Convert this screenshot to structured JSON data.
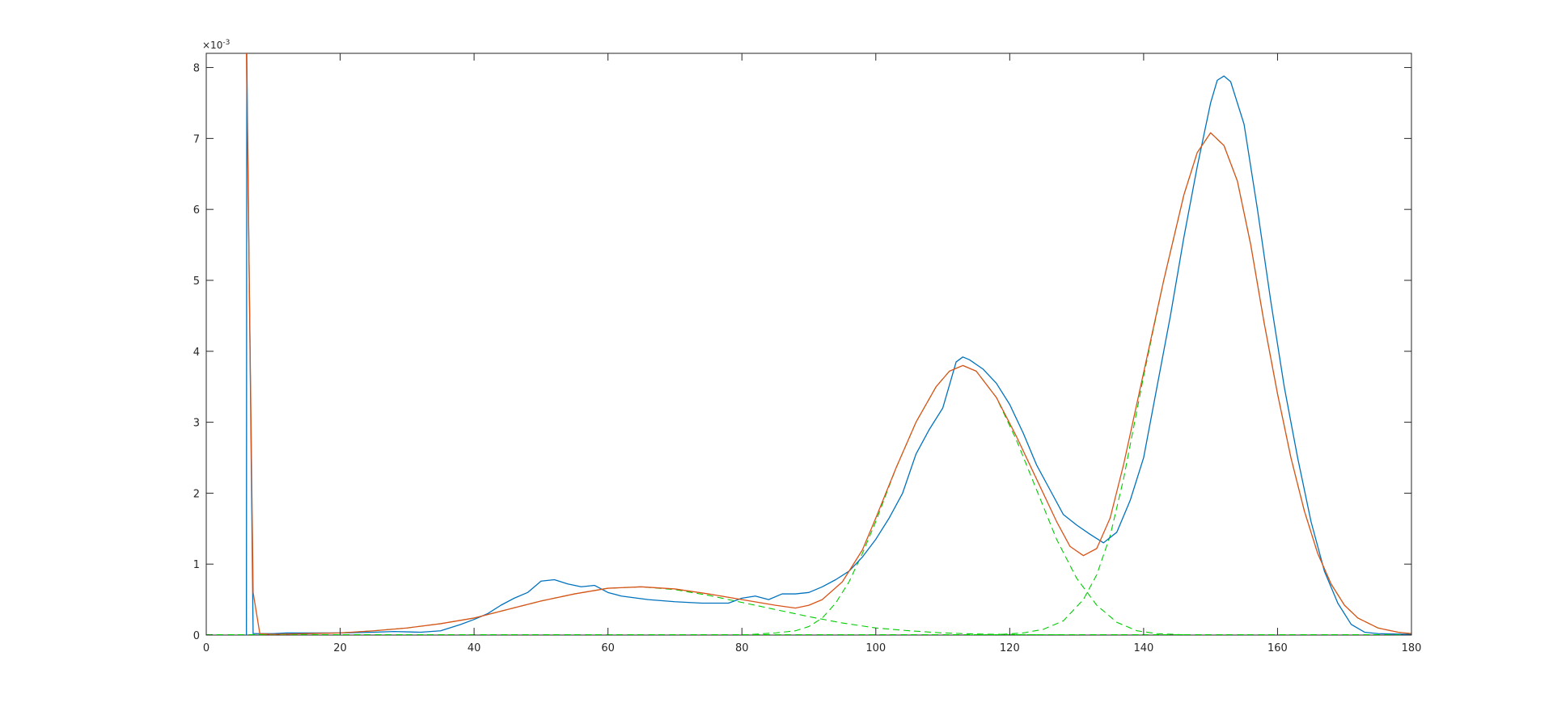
{
  "chart_data": {
    "type": "line",
    "title": "",
    "xlabel": "",
    "ylabel": "",
    "xlim": [
      0,
      180
    ],
    "ylim": [
      0,
      8.2
    ],
    "y_exponent_label": "×10",
    "y_exponent_power": "-3",
    "x_ticks": [
      0,
      20,
      40,
      60,
      80,
      100,
      120,
      140,
      160,
      180
    ],
    "y_ticks": [
      0,
      1,
      2,
      3,
      4,
      5,
      6,
      7,
      8
    ],
    "grid": false,
    "legend": "none",
    "series": [
      {
        "color": "#0072BD",
        "style": "solid",
        "points": [
          [
            6.0,
            0.0
          ],
          [
            6.05,
            8.2
          ],
          [
            7.0,
            0.02
          ],
          [
            10,
            0.02
          ],
          [
            12,
            0.03
          ],
          [
            15,
            0.03
          ],
          [
            20,
            0.03
          ],
          [
            25,
            0.04
          ],
          [
            28,
            0.05
          ],
          [
            32,
            0.04
          ],
          [
            35,
            0.06
          ],
          [
            38,
            0.15
          ],
          [
            40,
            0.22
          ],
          [
            42,
            0.3
          ],
          [
            44,
            0.42
          ],
          [
            46,
            0.52
          ],
          [
            48,
            0.6
          ],
          [
            50,
            0.76
          ],
          [
            52,
            0.78
          ],
          [
            54,
            0.72
          ],
          [
            56,
            0.68
          ],
          [
            58,
            0.7
          ],
          [
            60,
            0.6
          ],
          [
            62,
            0.55
          ],
          [
            66,
            0.5
          ],
          [
            70,
            0.47
          ],
          [
            74,
            0.45
          ],
          [
            78,
            0.45
          ],
          [
            80,
            0.52
          ],
          [
            82,
            0.55
          ],
          [
            84,
            0.5
          ],
          [
            86,
            0.58
          ],
          [
            88,
            0.58
          ],
          [
            90,
            0.6
          ],
          [
            92,
            0.68
          ],
          [
            94,
            0.78
          ],
          [
            96,
            0.9
          ],
          [
            98,
            1.1
          ],
          [
            100,
            1.35
          ],
          [
            102,
            1.65
          ],
          [
            104,
            2.0
          ],
          [
            106,
            2.55
          ],
          [
            108,
            2.9
          ],
          [
            110,
            3.2
          ],
          [
            112,
            3.85
          ],
          [
            113,
            3.92
          ],
          [
            114,
            3.88
          ],
          [
            116,
            3.75
          ],
          [
            118,
            3.55
          ],
          [
            120,
            3.25
          ],
          [
            122,
            2.85
          ],
          [
            124,
            2.4
          ],
          [
            126,
            2.05
          ],
          [
            128,
            1.7
          ],
          [
            130,
            1.55
          ],
          [
            132,
            1.42
          ],
          [
            134,
            1.3
          ],
          [
            136,
            1.45
          ],
          [
            138,
            1.9
          ],
          [
            140,
            2.5
          ],
          [
            142,
            3.5
          ],
          [
            144,
            4.5
          ],
          [
            146,
            5.6
          ],
          [
            148,
            6.6
          ],
          [
            150,
            7.5
          ],
          [
            151,
            7.82
          ],
          [
            152,
            7.88
          ],
          [
            153,
            7.8
          ],
          [
            155,
            7.2
          ],
          [
            157,
            6.0
          ],
          [
            159,
            4.7
          ],
          [
            161,
            3.5
          ],
          [
            163,
            2.5
          ],
          [
            165,
            1.6
          ],
          [
            167,
            0.9
          ],
          [
            169,
            0.45
          ],
          [
            171,
            0.15
          ],
          [
            173,
            0.04
          ],
          [
            175,
            0.02
          ],
          [
            180,
            0.01
          ]
        ]
      },
      {
        "color": "#D95319",
        "style": "solid",
        "points": [
          [
            6.0,
            8.2
          ],
          [
            7.0,
            0.6
          ],
          [
            8.0,
            0.02
          ],
          [
            10,
            0.01
          ],
          [
            15,
            0.02
          ],
          [
            20,
            0.03
          ],
          [
            25,
            0.06
          ],
          [
            30,
            0.1
          ],
          [
            35,
            0.16
          ],
          [
            40,
            0.24
          ],
          [
            45,
            0.36
          ],
          [
            50,
            0.48
          ],
          [
            55,
            0.58
          ],
          [
            60,
            0.66
          ],
          [
            65,
            0.68
          ],
          [
            70,
            0.65
          ],
          [
            75,
            0.58
          ],
          [
            80,
            0.5
          ],
          [
            85,
            0.42
          ],
          [
            88,
            0.38
          ],
          [
            90,
            0.42
          ],
          [
            92,
            0.5
          ],
          [
            95,
            0.75
          ],
          [
            98,
            1.2
          ],
          [
            100,
            1.65
          ],
          [
            103,
            2.35
          ],
          [
            106,
            3.0
          ],
          [
            109,
            3.5
          ],
          [
            111,
            3.72
          ],
          [
            113,
            3.8
          ],
          [
            115,
            3.72
          ],
          [
            118,
            3.35
          ],
          [
            121,
            2.8
          ],
          [
            124,
            2.2
          ],
          [
            127,
            1.6
          ],
          [
            129,
            1.25
          ],
          [
            131,
            1.12
          ],
          [
            133,
            1.22
          ],
          [
            135,
            1.65
          ],
          [
            137,
            2.4
          ],
          [
            140,
            3.7
          ],
          [
            143,
            5.0
          ],
          [
            146,
            6.2
          ],
          [
            148,
            6.8
          ],
          [
            150,
            7.08
          ],
          [
            152,
            6.9
          ],
          [
            154,
            6.4
          ],
          [
            156,
            5.5
          ],
          [
            158,
            4.4
          ],
          [
            160,
            3.4
          ],
          [
            162,
            2.5
          ],
          [
            164,
            1.75
          ],
          [
            166,
            1.15
          ],
          [
            168,
            0.72
          ],
          [
            170,
            0.42
          ],
          [
            172,
            0.24
          ],
          [
            175,
            0.1
          ],
          [
            178,
            0.04
          ],
          [
            180,
            0.02
          ]
        ]
      },
      {
        "color": "#00CC00",
        "style": "dashed",
        "points": [
          [
            0,
            0.005
          ],
          [
            180,
            0.005
          ]
        ]
      },
      {
        "color": "#00CC00",
        "style": "dashed",
        "points": [
          [
            8,
            0.0
          ],
          [
            10,
            0.01
          ],
          [
            15,
            0.02
          ],
          [
            20,
            0.03
          ],
          [
            25,
            0.06
          ],
          [
            30,
            0.1
          ],
          [
            35,
            0.16
          ],
          [
            40,
            0.24
          ],
          [
            45,
            0.36
          ],
          [
            50,
            0.48
          ],
          [
            55,
            0.58
          ],
          [
            60,
            0.66
          ],
          [
            65,
            0.68
          ],
          [
            70,
            0.64
          ],
          [
            75,
            0.56
          ],
          [
            80,
            0.46
          ],
          [
            85,
            0.36
          ],
          [
            90,
            0.26
          ],
          [
            95,
            0.17
          ],
          [
            100,
            0.1
          ],
          [
            105,
            0.06
          ],
          [
            110,
            0.03
          ],
          [
            115,
            0.015
          ],
          [
            120,
            0.008
          ],
          [
            125,
            0.004
          ],
          [
            130,
            0.002
          ]
        ]
      },
      {
        "color": "#00CC00",
        "style": "dashed",
        "points": [
          [
            80,
            0.0
          ],
          [
            85,
            0.03
          ],
          [
            88,
            0.06
          ],
          [
            90,
            0.12
          ],
          [
            92,
            0.24
          ],
          [
            94,
            0.45
          ],
          [
            96,
            0.75
          ],
          [
            98,
            1.15
          ],
          [
            100,
            1.6
          ],
          [
            103,
            2.35
          ],
          [
            106,
            3.0
          ],
          [
            109,
            3.5
          ],
          [
            111,
            3.72
          ],
          [
            113,
            3.8
          ],
          [
            115,
            3.72
          ],
          [
            118,
            3.35
          ],
          [
            121,
            2.75
          ],
          [
            124,
            2.05
          ],
          [
            127,
            1.35
          ],
          [
            130,
            0.8
          ],
          [
            133,
            0.42
          ],
          [
            136,
            0.18
          ],
          [
            139,
            0.06
          ],
          [
            142,
            0.02
          ],
          [
            146,
            0.004
          ]
        ]
      },
      {
        "color": "#00CC00",
        "style": "dashed",
        "points": [
          [
            114,
            0.0
          ],
          [
            118,
            0.005
          ],
          [
            122,
            0.03
          ],
          [
            125,
            0.08
          ],
          [
            128,
            0.2
          ],
          [
            131,
            0.5
          ],
          [
            133,
            0.85
          ],
          [
            135,
            1.4
          ],
          [
            137,
            2.2
          ],
          [
            140,
            3.65
          ],
          [
            143,
            5.0
          ],
          [
            146,
            6.2
          ],
          [
            148,
            6.8
          ],
          [
            150,
            7.08
          ],
          [
            152,
            6.9
          ],
          [
            154,
            6.4
          ],
          [
            156,
            5.5
          ],
          [
            158,
            4.4
          ],
          [
            160,
            3.4
          ],
          [
            162,
            2.5
          ],
          [
            164,
            1.75
          ],
          [
            166,
            1.15
          ],
          [
            168,
            0.72
          ],
          [
            170,
            0.42
          ],
          [
            172,
            0.24
          ],
          [
            175,
            0.1
          ],
          [
            178,
            0.04
          ],
          [
            180,
            0.02
          ]
        ]
      }
    ]
  }
}
